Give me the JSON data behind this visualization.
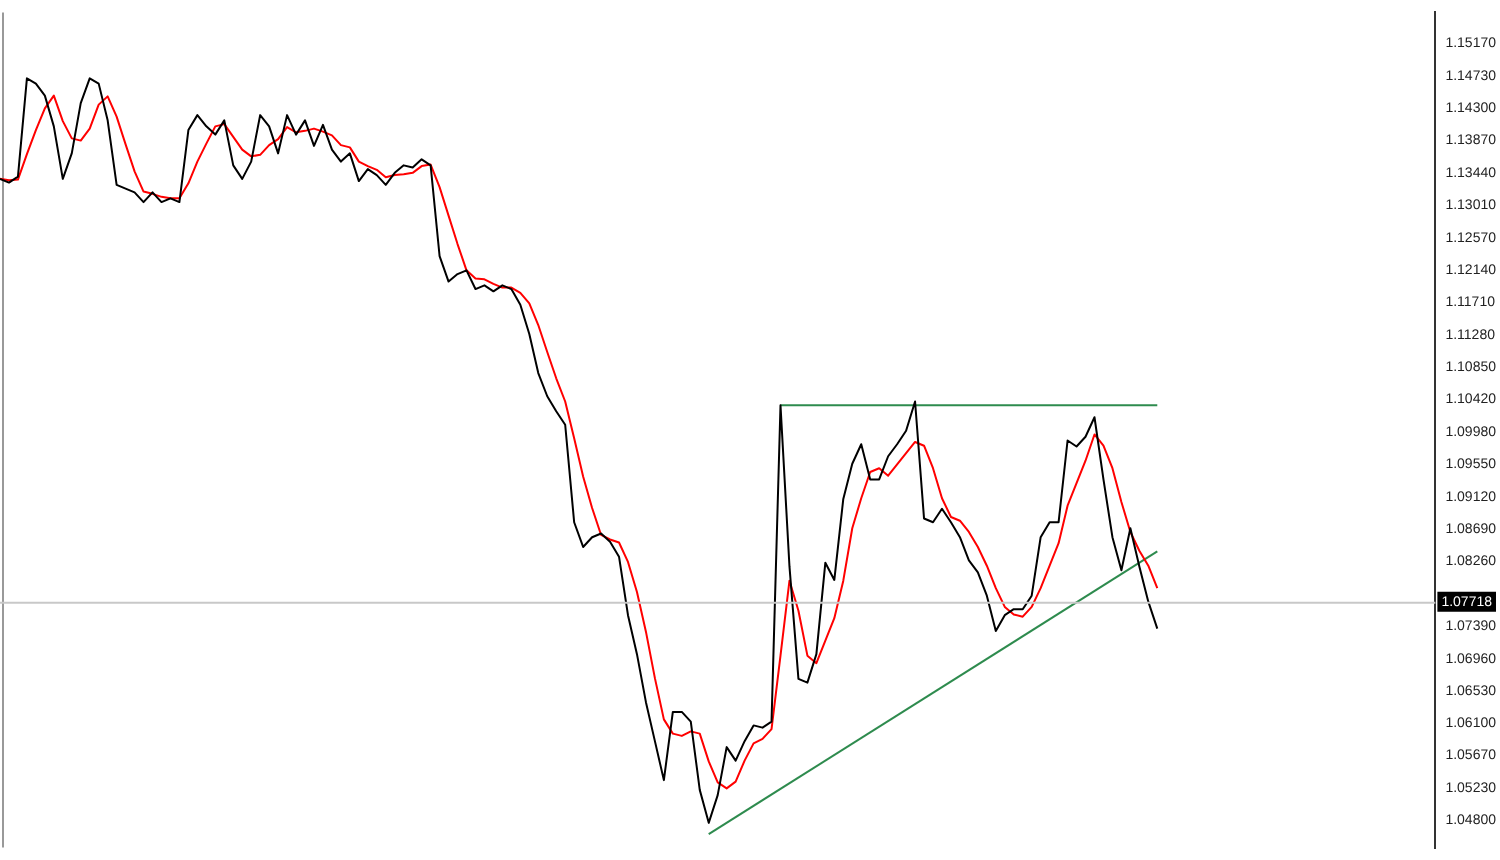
{
  "chart_data": {
    "type": "line",
    "categories": [
      null,
      null,
      null,
      null,
      null,
      null,
      null,
      null,
      null,
      null,
      null,
      null,
      null,
      null,
      null,
      null,
      null,
      null,
      null,
      null,
      null,
      null,
      null,
      null,
      null,
      null,
      null,
      null,
      null,
      null,
      null,
      null,
      null,
      null,
      null,
      null,
      null,
      null,
      null,
      null,
      null,
      null,
      null,
      null,
      null,
      null,
      null,
      null,
      null,
      null,
      null,
      null,
      null,
      null,
      null,
      null,
      null,
      null,
      null,
      null,
      null,
      null,
      null,
      null,
      null,
      null,
      null,
      null,
      null,
      null,
      null,
      null,
      null,
      null,
      null,
      null,
      null,
      null,
      null,
      null,
      null,
      null,
      null,
      null,
      null,
      null,
      null,
      null,
      null,
      null,
      null,
      null,
      null,
      null,
      null,
      null,
      null,
      null,
      null,
      null,
      null,
      null,
      null,
      null,
      null,
      null,
      null,
      null,
      null,
      null,
      null,
      null,
      null,
      null,
      null,
      null,
      null,
      null,
      null,
      null,
      null,
      null,
      null,
      null,
      null,
      null,
      null,
      null,
      null,
      null,
      null,
      null,
      null,
      null,
      null,
      null,
      null,
      null,
      null,
      null,
      null,
      null,
      null,
      null,
      null,
      null,
      null,
      null,
      null,
      null,
      null,
      null,
      null,
      null,
      null,
      null,
      null,
      null,
      null,
      null,
      null
    ],
    "series": [
      {
        "color": "#000000",
        "values": [
          1.1336,
          1.1331,
          1.1339,
          1.147,
          1.1463,
          1.1447,
          1.1406,
          1.1336,
          1.137,
          1.1437,
          1.147,
          1.1463,
          1.1414,
          1.1328,
          1.1323,
          1.1318,
          1.1305,
          1.1318,
          1.1305,
          1.131,
          1.1305,
          1.1401,
          1.1421,
          1.1406,
          1.1395,
          1.1414,
          1.1354,
          1.1336,
          1.1359,
          1.1421,
          1.1406,
          1.137,
          1.1421,
          1.1395,
          1.1414,
          1.138,
          1.1408,
          1.1375,
          1.1359,
          1.137,
          1.1333,
          1.1349,
          1.1341,
          1.1328,
          1.1344,
          1.1354,
          1.1351,
          1.1362,
          1.1354,
          1.1233,
          1.1199,
          1.1209,
          1.1214,
          1.1189,
          1.1194,
          1.1186,
          1.1194,
          1.1189,
          1.1168,
          1.1129,
          1.1077,
          1.1046,
          1.1026,
          1.1008,
          1.0878,
          1.0845,
          1.0858,
          1.0863,
          1.0852,
          1.0832,
          1.0754,
          1.0702,
          1.0638,
          1.0586,
          1.0534,
          1.0625,
          1.0625,
          1.0612,
          1.0521,
          1.0477,
          1.0514,
          1.0578,
          1.056,
          1.0586,
          1.0607,
          1.0604,
          1.0612,
          1.1034,
          1.0819,
          1.0669,
          1.0664,
          1.0702,
          1.0824,
          1.0801,
          1.0909,
          1.0956,
          1.0982,
          1.0935,
          1.0935,
          1.0966,
          1.0982,
          1.1,
          1.1039,
          1.0883,
          1.0878,
          1.0896,
          1.0878,
          1.0858,
          1.0827,
          1.0811,
          1.078,
          1.0733,
          1.0754,
          1.0762,
          1.0762,
          1.078,
          1.0858,
          1.0878,
          1.0878,
          1.0987,
          1.0979,
          1.0992,
          1.1018,
          1.0935,
          1.0858,
          1.0814,
          1.087,
          1.0819,
          1.0772,
          1.0736,
          null,
          null,
          null,
          null,
          null,
          null,
          null,
          null,
          null,
          null,
          null,
          null,
          null,
          null,
          null,
          null,
          null,
          null,
          null,
          null,
          null,
          null,
          null,
          null,
          null,
          null,
          null,
          null,
          null,
          null,
          null
        ]
      },
      {
        "color": "#ff0000",
        "values": [
          1.1336,
          1.1334,
          1.1335,
          1.1369,
          1.1401,
          1.143,
          1.1447,
          1.1413,
          1.139,
          1.1387,
          1.1403,
          1.1435,
          1.1446,
          1.1419,
          1.1382,
          1.1346,
          1.1319,
          1.1316,
          1.1312,
          1.131,
          1.131,
          1.133,
          1.1359,
          1.1383,
          1.1406,
          1.1409,
          1.1392,
          1.1375,
          1.1366,
          1.1368,
          1.1381,
          1.1389,
          1.1405,
          1.1398,
          1.14,
          1.1403,
          1.1399,
          1.1394,
          1.1381,
          1.1378,
          1.1359,
          1.1353,
          1.1348,
          1.1338,
          1.1341,
          1.1342,
          1.1344,
          1.1353,
          1.1355,
          1.1325,
          1.1287,
          1.1249,
          1.1214,
          1.1203,
          1.1202,
          1.1196,
          1.1191,
          1.1191,
          1.1184,
          1.117,
          1.1141,
          1.1105,
          1.107,
          1.1039,
          1.099,
          1.0939,
          1.0897,
          1.0861,
          1.0855,
          1.0851,
          1.0825,
          1.0785,
          1.0732,
          1.067,
          1.0615,
          1.0596,
          1.0593,
          1.0599,
          1.0596,
          1.0559,
          1.0531,
          1.0523,
          1.0532,
          1.056,
          1.0583,
          1.0589,
          1.0602,
          1.07,
          1.08,
          1.076,
          1.07,
          1.069,
          1.072,
          1.075,
          1.08,
          1.087,
          1.091,
          1.0945,
          1.095,
          1.094,
          1.0955,
          1.097,
          1.0985,
          1.098,
          1.095,
          1.091,
          1.0885,
          1.088,
          1.0865,
          1.0845,
          1.082,
          1.079,
          1.0765,
          1.0755,
          1.0752,
          1.0765,
          1.079,
          1.082,
          1.085,
          1.09,
          1.093,
          1.096,
          1.0995,
          1.098,
          1.095,
          1.0905,
          1.0865,
          1.084,
          1.082,
          1.079,
          null,
          null,
          null,
          null,
          null,
          null,
          null,
          null,
          null,
          null,
          null,
          null,
          null,
          null,
          null,
          null,
          null,
          null,
          null,
          null,
          null,
          null,
          null,
          null,
          null,
          null,
          null,
          null,
          null,
          null,
          null
        ]
      },
      {
        "color": "#2e8b4e",
        "values": [
          null,
          null,
          null,
          null,
          null,
          null,
          null,
          null,
          null,
          null,
          null,
          null,
          null,
          null,
          null,
          null,
          null,
          null,
          null,
          null,
          null,
          null,
          null,
          null,
          null,
          null,
          null,
          null,
          null,
          null,
          null,
          null,
          null,
          null,
          null,
          null,
          null,
          null,
          null,
          null,
          null,
          null,
          null,
          null,
          null,
          null,
          null,
          null,
          null,
          null,
          null,
          null,
          null,
          null,
          null,
          null,
          null,
          null,
          null,
          null,
          null,
          null,
          null,
          null,
          null,
          null,
          null,
          null,
          null,
          null,
          null,
          null,
          null,
          null,
          null,
          null,
          null,
          null,
          null,
          1.0462,
          null,
          null,
          null,
          null,
          null,
          null,
          null,
          null,
          null,
          null,
          null,
          null,
          null,
          null,
          null,
          null,
          null,
          null,
          null,
          null,
          null,
          null,
          null,
          null,
          null,
          null,
          null,
          null,
          null,
          null,
          null,
          null,
          null,
          null,
          null,
          null,
          null,
          null,
          null,
          null,
          null,
          null,
          null,
          null,
          null,
          null,
          null,
          null,
          null,
          1.0839,
          null,
          null,
          null,
          null,
          null,
          null,
          null,
          null,
          null,
          null,
          null,
          null,
          null,
          null,
          null,
          null,
          null,
          null,
          null,
          null,
          null,
          null,
          null,
          null,
          null,
          null,
          null,
          null,
          null,
          null,
          null
        ]
      },
      {
        "color": "#2e8b4e",
        "values": [
          null,
          null,
          null,
          null,
          null,
          null,
          null,
          null,
          null,
          null,
          null,
          null,
          null,
          null,
          null,
          null,
          null,
          null,
          null,
          null,
          null,
          null,
          null,
          null,
          null,
          null,
          null,
          null,
          null,
          null,
          null,
          null,
          null,
          null,
          null,
          null,
          null,
          null,
          null,
          null,
          null,
          null,
          null,
          null,
          null,
          null,
          null,
          null,
          null,
          null,
          null,
          null,
          null,
          null,
          null,
          null,
          null,
          null,
          null,
          null,
          null,
          null,
          null,
          null,
          null,
          null,
          null,
          null,
          null,
          null,
          null,
          null,
          null,
          null,
          null,
          null,
          null,
          null,
          null,
          null,
          null,
          null,
          null,
          null,
          null,
          null,
          null,
          1.1034,
          null,
          null,
          null,
          null,
          null,
          null,
          null,
          null,
          null,
          null,
          null,
          null,
          null,
          null,
          null,
          null,
          null,
          null,
          null,
          null,
          null,
          null,
          null,
          null,
          null,
          null,
          null,
          null,
          null,
          null,
          null,
          null,
          null,
          null,
          null,
          null,
          null,
          null,
          null,
          null,
          null,
          1.1034,
          null,
          null,
          null,
          null,
          null,
          null,
          null,
          null,
          null,
          null,
          null,
          null,
          null,
          null,
          null,
          null,
          null,
          null,
          null,
          null,
          null,
          null,
          null,
          null,
          null,
          null,
          null,
          null,
          null,
          null,
          null
        ]
      }
    ],
    "ylim": [
      1.0444,
      1.1558
    ],
    "yticks": [
      {
        "value": 1.1517,
        "label": "1.15170"
      },
      {
        "value": 1.1473,
        "label": "1.14730"
      },
      {
        "value": 1.143,
        "label": "1.14300"
      },
      {
        "value": 1.1387,
        "label": "1.13870"
      },
      {
        "value": 1.1344,
        "label": "1.13440"
      },
      {
        "value": 1.1301,
        "label": "1.13010"
      },
      {
        "value": 1.1257,
        "label": "1.12570"
      },
      {
        "value": 1.1214,
        "label": "1.12140"
      },
      {
        "value": 1.1171,
        "label": "1.11710"
      },
      {
        "value": 1.1128,
        "label": "1.11280"
      },
      {
        "value": 1.1085,
        "label": "1.10850"
      },
      {
        "value": 1.1042,
        "label": "1.10420"
      },
      {
        "value": 1.0998,
        "label": "1.09980"
      },
      {
        "value": 1.0955,
        "label": "1.09550"
      },
      {
        "value": 1.0912,
        "label": "1.09120"
      },
      {
        "value": 1.0869,
        "label": "1.08690"
      },
      {
        "value": 1.0826,
        "label": "1.08260"
      },
      {
        "value": 1.0739,
        "label": "1.07390"
      },
      {
        "value": 1.0696,
        "label": "1.06960"
      },
      {
        "value": 1.0653,
        "label": "1.06530"
      },
      {
        "value": 1.061,
        "label": "1.06100"
      },
      {
        "value": 1.0567,
        "label": "1.05670"
      },
      {
        "value": 1.0523,
        "label": "1.05230"
      },
      {
        "value": 1.048,
        "label": "1.04800"
      }
    ],
    "ref_lines": [
      {
        "axis": "y",
        "value": 1.07718,
        "label": "1.07718",
        "color": "#c8c8c8"
      }
    ],
    "tick_labels": "y",
    "legend": false,
    "grid": false,
    "marker": "none"
  }
}
